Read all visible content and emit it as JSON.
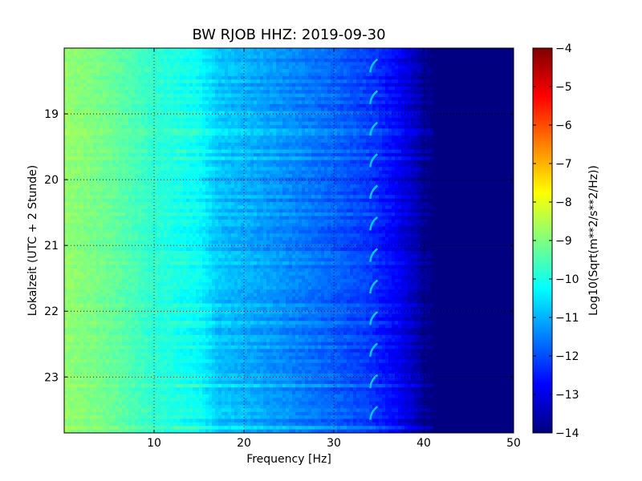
{
  "chart_data": {
    "type": "heatmap",
    "title": "BW RJOB HHZ: 2019-09-30",
    "xlabel": "Frequency [Hz]",
    "ylabel": "Lokalzeit (UTC + 2 Stunde)",
    "colorbar_label": "Log10(Sqrt(m**2/s**2/Hz))",
    "xlim": [
      0,
      50
    ],
    "ylim_hours": [
      18.0,
      23.85
    ],
    "y_inverted": true,
    "x_ticks": [
      10,
      20,
      30,
      40,
      50
    ],
    "y_ticks": [
      19,
      20,
      21,
      22,
      23
    ],
    "colorbar_range": [
      -4,
      -14
    ],
    "colorbar_ticks": [
      -4,
      -5,
      -6,
      -7,
      -8,
      -9,
      -10,
      -11,
      -12,
      -13,
      -14
    ],
    "colormap": "jet",
    "grid": true,
    "spectral_profile": {
      "frequency_hz": [
        0,
        5,
        10,
        15,
        17,
        20,
        25,
        30,
        34,
        37,
        39,
        40,
        41,
        50
      ],
      "log10_amplitude": [
        -8.8,
        -9.2,
        -9.8,
        -10.2,
        -10.8,
        -11.0,
        -11.4,
        -11.8,
        -12.2,
        -12.8,
        -13.4,
        -13.8,
        -14.0,
        -14.0
      ]
    },
    "feature_frequency_hz": 34.5
  }
}
